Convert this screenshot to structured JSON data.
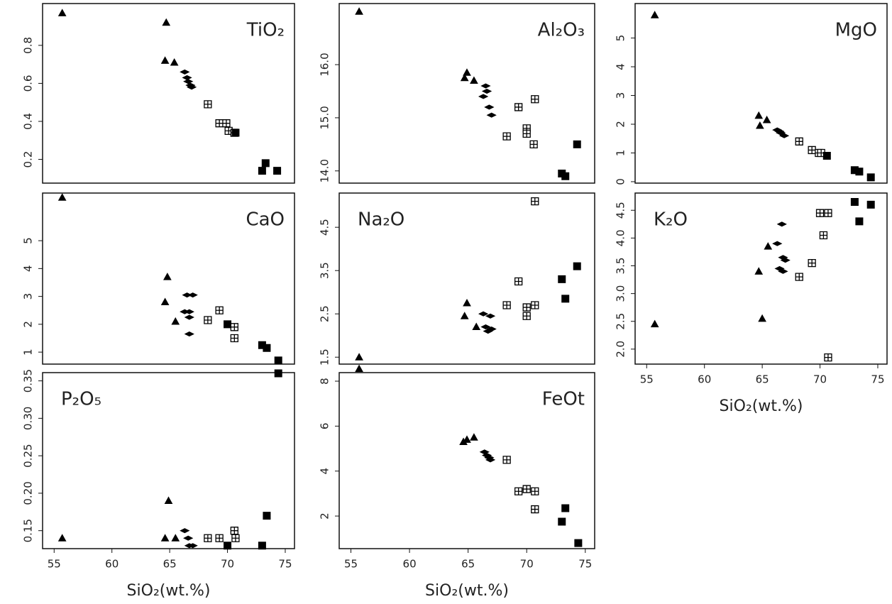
{
  "chart_data": [
    {
      "type": "scatter",
      "title": "TiO₂",
      "title_corner": "top-right",
      "xlim": [
        54,
        75.8
      ],
      "ylim": [
        0.075,
        1.02
      ],
      "yticks": [
        0.2,
        0.4,
        0.6,
        0.8
      ],
      "series": [
        {
          "marker": "triangle",
          "color": "#000000",
          "x": [
            55.7,
            64.7,
            64.6,
            65.4
          ],
          "values": [
            0.97,
            0.92,
            0.72,
            0.71
          ]
        },
        {
          "marker": "diamond",
          "color": "#000000",
          "x": [
            66.3,
            66.5,
            66.6,
            66.8,
            66.9
          ],
          "values": [
            0.66,
            0.63,
            0.61,
            0.59,
            0.58
          ]
        },
        {
          "marker": "grid-square",
          "color": "#000000",
          "x": [
            68.3,
            69.3,
            69.9,
            70.1,
            70.6
          ],
          "values": [
            0.49,
            0.39,
            0.39,
            0.35,
            0.34
          ]
        },
        {
          "marker": "square",
          "color": "#000000",
          "x": [
            70.7,
            73.0,
            73.3,
            74.3
          ],
          "values": [
            0.34,
            0.14,
            0.18,
            0.14
          ]
        }
      ]
    },
    {
      "type": "scatter",
      "title": "Al₂O₃",
      "title_corner": "top-right",
      "xlim": [
        54,
        75.8
      ],
      "ylim": [
        13.77,
        17.15
      ],
      "yticks": [
        {
          "value": 14,
          "label": "14.0"
        },
        {
          "value": 15,
          "label": "15.0"
        },
        {
          "value": 16,
          "label": "16.0"
        }
      ],
      "series": [
        {
          "marker": "triangle",
          "color": "#000000",
          "x": [
            55.7,
            64.7,
            64.9,
            65.5
          ],
          "values": [
            17.0,
            15.75,
            15.85,
            15.7
          ]
        },
        {
          "marker": "diamond",
          "color": "#000000",
          "x": [
            66.3,
            66.5,
            66.6,
            66.8,
            67.0
          ],
          "values": [
            15.4,
            15.6,
            15.5,
            15.2,
            15.05
          ]
        },
        {
          "marker": "grid-square",
          "color": "#000000",
          "x": [
            68.3,
            69.3,
            70.0,
            70.0,
            70.6,
            70.7
          ],
          "values": [
            14.65,
            15.2,
            14.8,
            14.7,
            14.5,
            15.35
          ]
        },
        {
          "marker": "square",
          "color": "#000000",
          "x": [
            73.0,
            73.3,
            74.3
          ],
          "values": [
            13.95,
            13.9,
            14.5
          ]
        }
      ]
    },
    {
      "type": "scatter",
      "title": "MgO",
      "title_corner": "top-right",
      "xlim": [
        54,
        75.8
      ],
      "ylim": [
        -0.05,
        6.2
      ],
      "yticks": [
        0,
        1,
        2,
        3,
        4,
        5
      ],
      "series": [
        {
          "marker": "triangle",
          "color": "#000000",
          "x": [
            55.7,
            64.7,
            64.8,
            65.4
          ],
          "values": [
            5.8,
            2.3,
            1.95,
            2.15
          ]
        },
        {
          "marker": "diamond",
          "color": "#000000",
          "x": [
            66.3,
            66.5,
            66.6,
            66.9
          ],
          "values": [
            1.8,
            1.75,
            1.7,
            1.6
          ]
        },
        {
          "marker": "grid-square",
          "color": "#000000",
          "x": [
            68.2,
            69.3,
            69.9,
            70.1
          ],
          "values": [
            1.4,
            1.1,
            1.0,
            1.0
          ]
        },
        {
          "marker": "square",
          "color": "#000000",
          "x": [
            70.6,
            73.0,
            73.4,
            74.4
          ],
          "values": [
            0.9,
            0.4,
            0.35,
            0.15
          ]
        }
      ]
    },
    {
      "type": "scatter",
      "title": "CaO",
      "title_corner": "top-right",
      "xlim": [
        54,
        75.8
      ],
      "ylim": [
        0.57,
        6.71
      ],
      "yticks": [
        1,
        2,
        3,
        4,
        5
      ],
      "series": [
        {
          "marker": "triangle",
          "color": "#000000",
          "x": [
            55.7,
            64.6,
            64.8,
            65.5
          ],
          "values": [
            6.55,
            2.8,
            3.7,
            2.1
          ]
        },
        {
          "marker": "diamond",
          "color": "#000000",
          "x": [
            66.3,
            66.5,
            66.7,
            66.7,
            66.7,
            67.0
          ],
          "values": [
            2.45,
            3.05,
            2.45,
            2.25,
            1.65,
            3.05
          ]
        },
        {
          "marker": "grid-square",
          "color": "#000000",
          "x": [
            68.3,
            69.3,
            70.6,
            70.6
          ],
          "values": [
            2.15,
            2.5,
            1.9,
            1.5
          ]
        },
        {
          "marker": "square",
          "color": "#000000",
          "x": [
            70.0,
            73.0,
            73.4,
            74.4
          ],
          "values": [
            2.0,
            1.25,
            1.15,
            0.7
          ]
        }
      ]
    },
    {
      "type": "scatter",
      "title": "Na₂O",
      "title_corner": "top-left",
      "xlim": [
        54,
        75.8
      ],
      "ylim": [
        1.34,
        5.29
      ],
      "yticks": [
        1.5,
        2.5,
        3.5,
        4.5
      ],
      "series": [
        {
          "marker": "triangle",
          "color": "#000000",
          "x": [
            55.7,
            64.7,
            64.9,
            65.7
          ],
          "values": [
            1.5,
            2.45,
            2.75,
            2.2
          ]
        },
        {
          "marker": "diamond",
          "color": "#000000",
          "x": [
            66.3,
            66.5,
            66.7,
            66.9,
            67.0
          ],
          "values": [
            2.5,
            2.2,
            2.1,
            2.45,
            2.15
          ]
        },
        {
          "marker": "grid-square",
          "color": "#000000",
          "x": [
            68.3,
            69.3,
            70.0,
            70.0,
            70.7,
            70.7
          ],
          "values": [
            2.7,
            3.25,
            2.65,
            2.45,
            2.7,
            5.1
          ]
        },
        {
          "marker": "square",
          "color": "#000000",
          "x": [
            73.0,
            73.3,
            74.3
          ],
          "values": [
            3.3,
            2.85,
            3.6
          ]
        }
      ]
    },
    {
      "type": "scatter",
      "title": "K₂O",
      "title_corner": "top-left",
      "xlim": [
        54,
        75.8
      ],
      "ylim": [
        1.73,
        4.81
      ],
      "yticks": [
        {
          "value": 2,
          "label": "2.0"
        },
        2.5,
        {
          "value": 3,
          "label": "3.0"
        },
        3.5,
        {
          "value": 4,
          "label": "4.0"
        },
        4.5
      ],
      "xticks": [
        55,
        60,
        65,
        70,
        75
      ],
      "x_label": "SiO₂(wt.%)",
      "series": [
        {
          "marker": "triangle",
          "color": "#000000",
          "x": [
            55.7,
            64.7,
            65.0,
            65.5
          ],
          "values": [
            2.45,
            3.4,
            2.55,
            3.85
          ]
        },
        {
          "marker": "diamond",
          "color": "#000000",
          "x": [
            66.3,
            66.5,
            66.7,
            66.8,
            67.0,
            66.8
          ],
          "values": [
            3.9,
            3.45,
            4.25,
            3.65,
            3.6,
            3.4
          ]
        },
        {
          "marker": "grid-square",
          "color": "#000000",
          "x": [
            68.2,
            69.3,
            70.0,
            70.3,
            70.7,
            70.7
          ],
          "values": [
            3.3,
            3.55,
            4.45,
            4.05,
            4.45,
            1.85
          ]
        },
        {
          "marker": "square",
          "color": "#000000",
          "x": [
            73.0,
            73.4,
            74.4
          ],
          "values": [
            4.65,
            4.3,
            4.6
          ]
        }
      ]
    },
    {
      "type": "scatter",
      "title": "P₂O₅",
      "title_corner": "top-left",
      "xlim": [
        54,
        75.8
      ],
      "ylim": [
        0.126,
        0.361
      ],
      "yticks": [
        0.15,
        {
          "value": 0.2,
          "label": "0.20"
        },
        0.25,
        {
          "value": 0.3,
          "label": "0.30"
        },
        0.35
      ],
      "xticks": [
        55,
        60,
        65,
        70,
        75
      ],
      "x_label": "SiO₂(wt.%)",
      "series": [
        {
          "marker": "triangle",
          "color": "#000000",
          "x": [
            55.7,
            64.6,
            64.9,
            65.5
          ],
          "values": [
            0.14,
            0.14,
            0.19,
            0.14
          ]
        },
        {
          "marker": "diamond",
          "color": "#000000",
          "x": [
            66.3,
            66.6,
            66.7,
            67.0
          ],
          "values": [
            0.15,
            0.14,
            0.13,
            0.13
          ]
        },
        {
          "marker": "grid-square",
          "color": "#000000",
          "x": [
            68.3,
            69.3,
            70.6,
            70.7
          ],
          "values": [
            0.14,
            0.14,
            0.15,
            0.14
          ]
        },
        {
          "marker": "square",
          "color": "#000000",
          "x": [
            70.0,
            73.0,
            73.4,
            74.4
          ],
          "values": [
            0.13,
            0.13,
            0.17,
            0.36
          ]
        }
      ]
    },
    {
      "type": "scatter",
      "title": "FeOt",
      "title_corner": "top-right",
      "xlim": [
        54,
        75.8
      ],
      "ylim": [
        0.55,
        8.38
      ],
      "yticks": [
        2,
        4,
        6,
        8
      ],
      "xticks": [
        55,
        60,
        65,
        70,
        75
      ],
      "x_label": "SiO₂(wt.%)",
      "series": [
        {
          "marker": "triangle",
          "color": "#000000",
          "x": [
            55.7,
            64.6,
            64.9,
            65.5
          ],
          "values": [
            8.55,
            5.3,
            5.4,
            5.5
          ]
        },
        {
          "marker": "diamond",
          "color": "#000000",
          "x": [
            66.4,
            66.6,
            66.8,
            66.9
          ],
          "values": [
            4.85,
            4.7,
            4.6,
            4.5
          ]
        },
        {
          "marker": "grid-square",
          "color": "#000000",
          "x": [
            68.3,
            69.3,
            70.0,
            70.7,
            70.7
          ],
          "values": [
            4.5,
            3.1,
            3.2,
            3.1,
            2.3
          ]
        },
        {
          "marker": "square",
          "color": "#000000",
          "x": [
            73.0,
            73.3,
            74.4
          ],
          "values": [
            1.75,
            2.35,
            0.8
          ]
        }
      ]
    }
  ]
}
